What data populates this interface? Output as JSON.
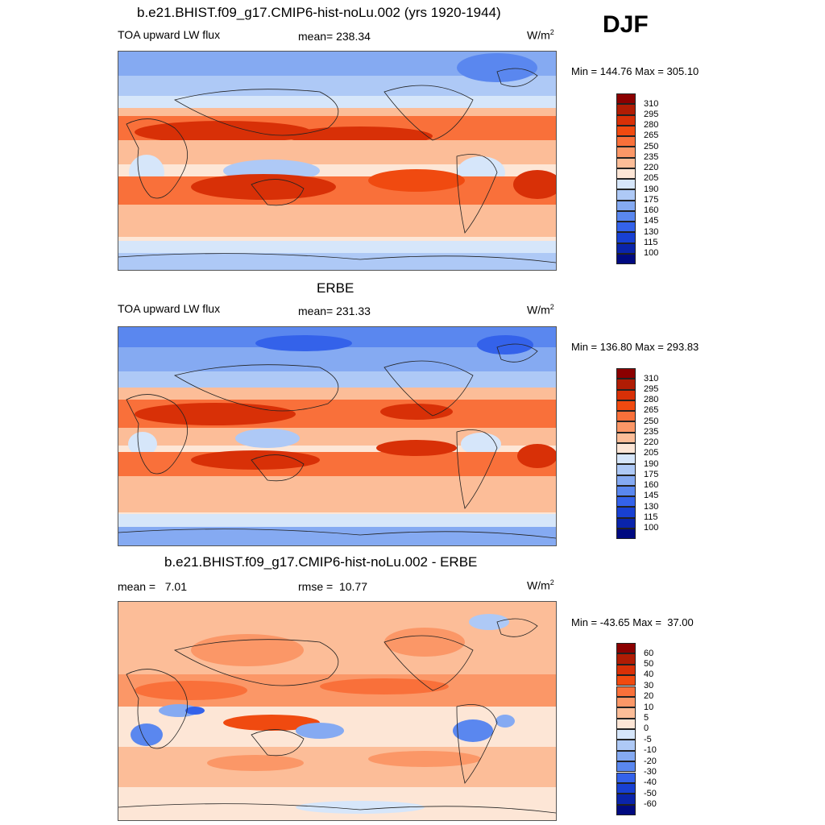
{
  "season": "DJF",
  "panels": [
    {
      "id": "model",
      "title": "b.e21.BHIST.f09_g17.CMIP6-hist-noLu.002 (yrs 1920-1944)",
      "left_label": "TOA upward LW flux",
      "center_label": "mean= 238.34",
      "units": "W/m",
      "units_sup": "2",
      "minmax": "Min = 144.76 Max = 305.10",
      "colorbar_ticks": [
        "310",
        "295",
        "280",
        "265",
        "250",
        "235",
        "220",
        "205",
        "190",
        "175",
        "160",
        "145",
        "130",
        "115",
        "100"
      ]
    },
    {
      "id": "obs",
      "title": "ERBE",
      "left_label": "TOA upward LW flux",
      "center_label": "mean= 231.33",
      "units": "W/m",
      "units_sup": "2",
      "minmax": "Min = 136.80 Max = 293.83",
      "colorbar_ticks": [
        "310",
        "295",
        "280",
        "265",
        "250",
        "235",
        "220",
        "205",
        "190",
        "175",
        "160",
        "145",
        "130",
        "115",
        "100"
      ]
    },
    {
      "id": "diff",
      "title": "b.e21.BHIST.f09_g17.CMIP6-hist-noLu.002 - ERBE",
      "left_label": "mean =   7.01",
      "center_label": "rmse =  10.77",
      "units": "W/m",
      "units_sup": "2",
      "minmax": "Min = -43.65 Max =  37.00",
      "colorbar_ticks": [
        "60",
        "50",
        "40",
        "30",
        "20",
        "10",
        "5",
        "0",
        "-5",
        "-10",
        "-20",
        "-30",
        "-40",
        "-50",
        "-60"
      ]
    }
  ],
  "palette": [
    "#8b0000",
    "#b01c04",
    "#d83007",
    "#f04a10",
    "#f9703a",
    "#fb9767",
    "#fcbd98",
    "#fde6d6",
    "#d6e6fa",
    "#aec9f6",
    "#85aaf2",
    "#5a87ef",
    "#3462ea",
    "#1840d2",
    "#0a24aa",
    "#000a80"
  ]
}
